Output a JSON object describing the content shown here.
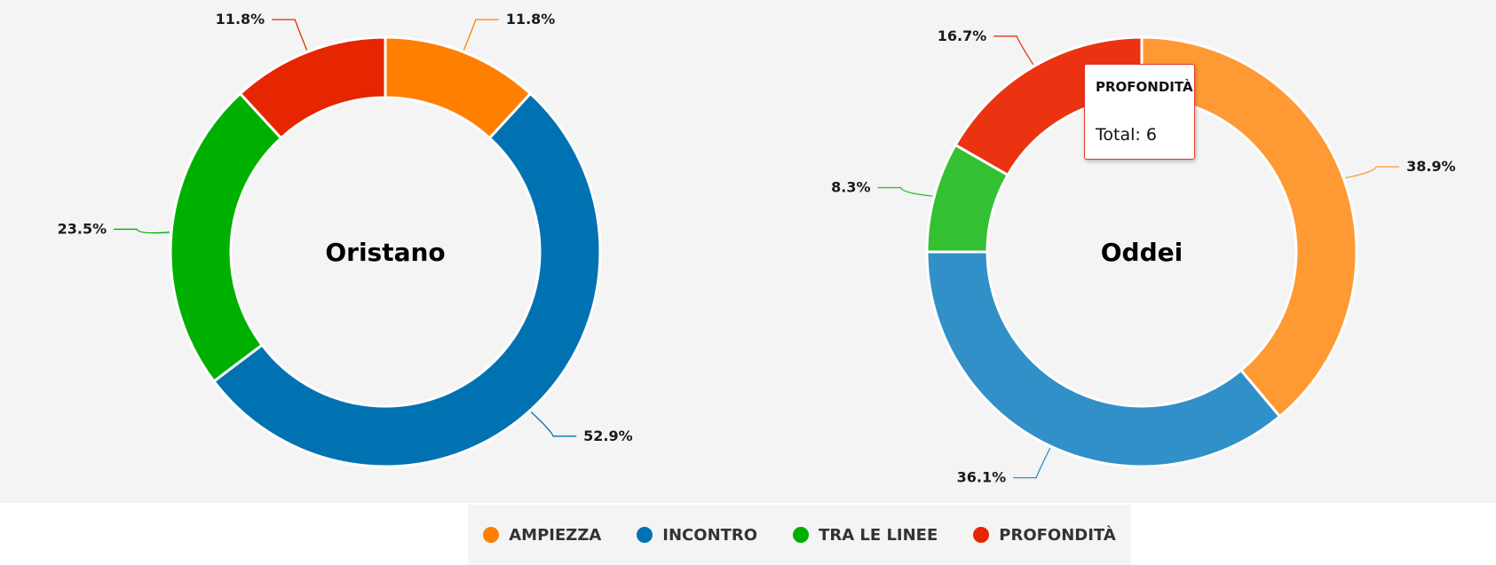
{
  "chart_data": [
    {
      "type": "pie",
      "title": "Oristano",
      "categories": [
        "AMPIEZZA",
        "INCONTRO",
        "TRA LE LINEE",
        "PROFONDITÀ"
      ],
      "values": [
        11.8,
        52.9,
        23.5,
        11.8
      ],
      "labels": [
        "11.8%",
        "52.9%",
        "23.5%",
        "11.8%"
      ],
      "colors": [
        "#ff7f00",
        "#0072b2",
        "#00b000",
        "#e62600"
      ]
    },
    {
      "type": "pie",
      "title": "Oddei",
      "categories": [
        "AMPIEZZA",
        "INCONTRO",
        "TRA LE LINEE",
        "PROFONDITÀ"
      ],
      "values": [
        38.9,
        36.1,
        8.3,
        16.7
      ],
      "labels": [
        "38.9%",
        "36.1%",
        "8.3%",
        "16.7%"
      ],
      "colors": [
        "#ff9933",
        "#3090c7",
        "#33c133",
        "#eb3311"
      ]
    }
  ],
  "tooltip": {
    "title": "PROFONDITÀ",
    "value": "Total: 6"
  },
  "legend": {
    "items": [
      {
        "label": "AMPIEZZA",
        "color": "#ff7f00"
      },
      {
        "label": "INCONTRO",
        "color": "#0072b2"
      },
      {
        "label": "TRA LE LINEE",
        "color": "#00b000"
      },
      {
        "label": "PROFONDITÀ",
        "color": "#e62600"
      }
    ]
  }
}
